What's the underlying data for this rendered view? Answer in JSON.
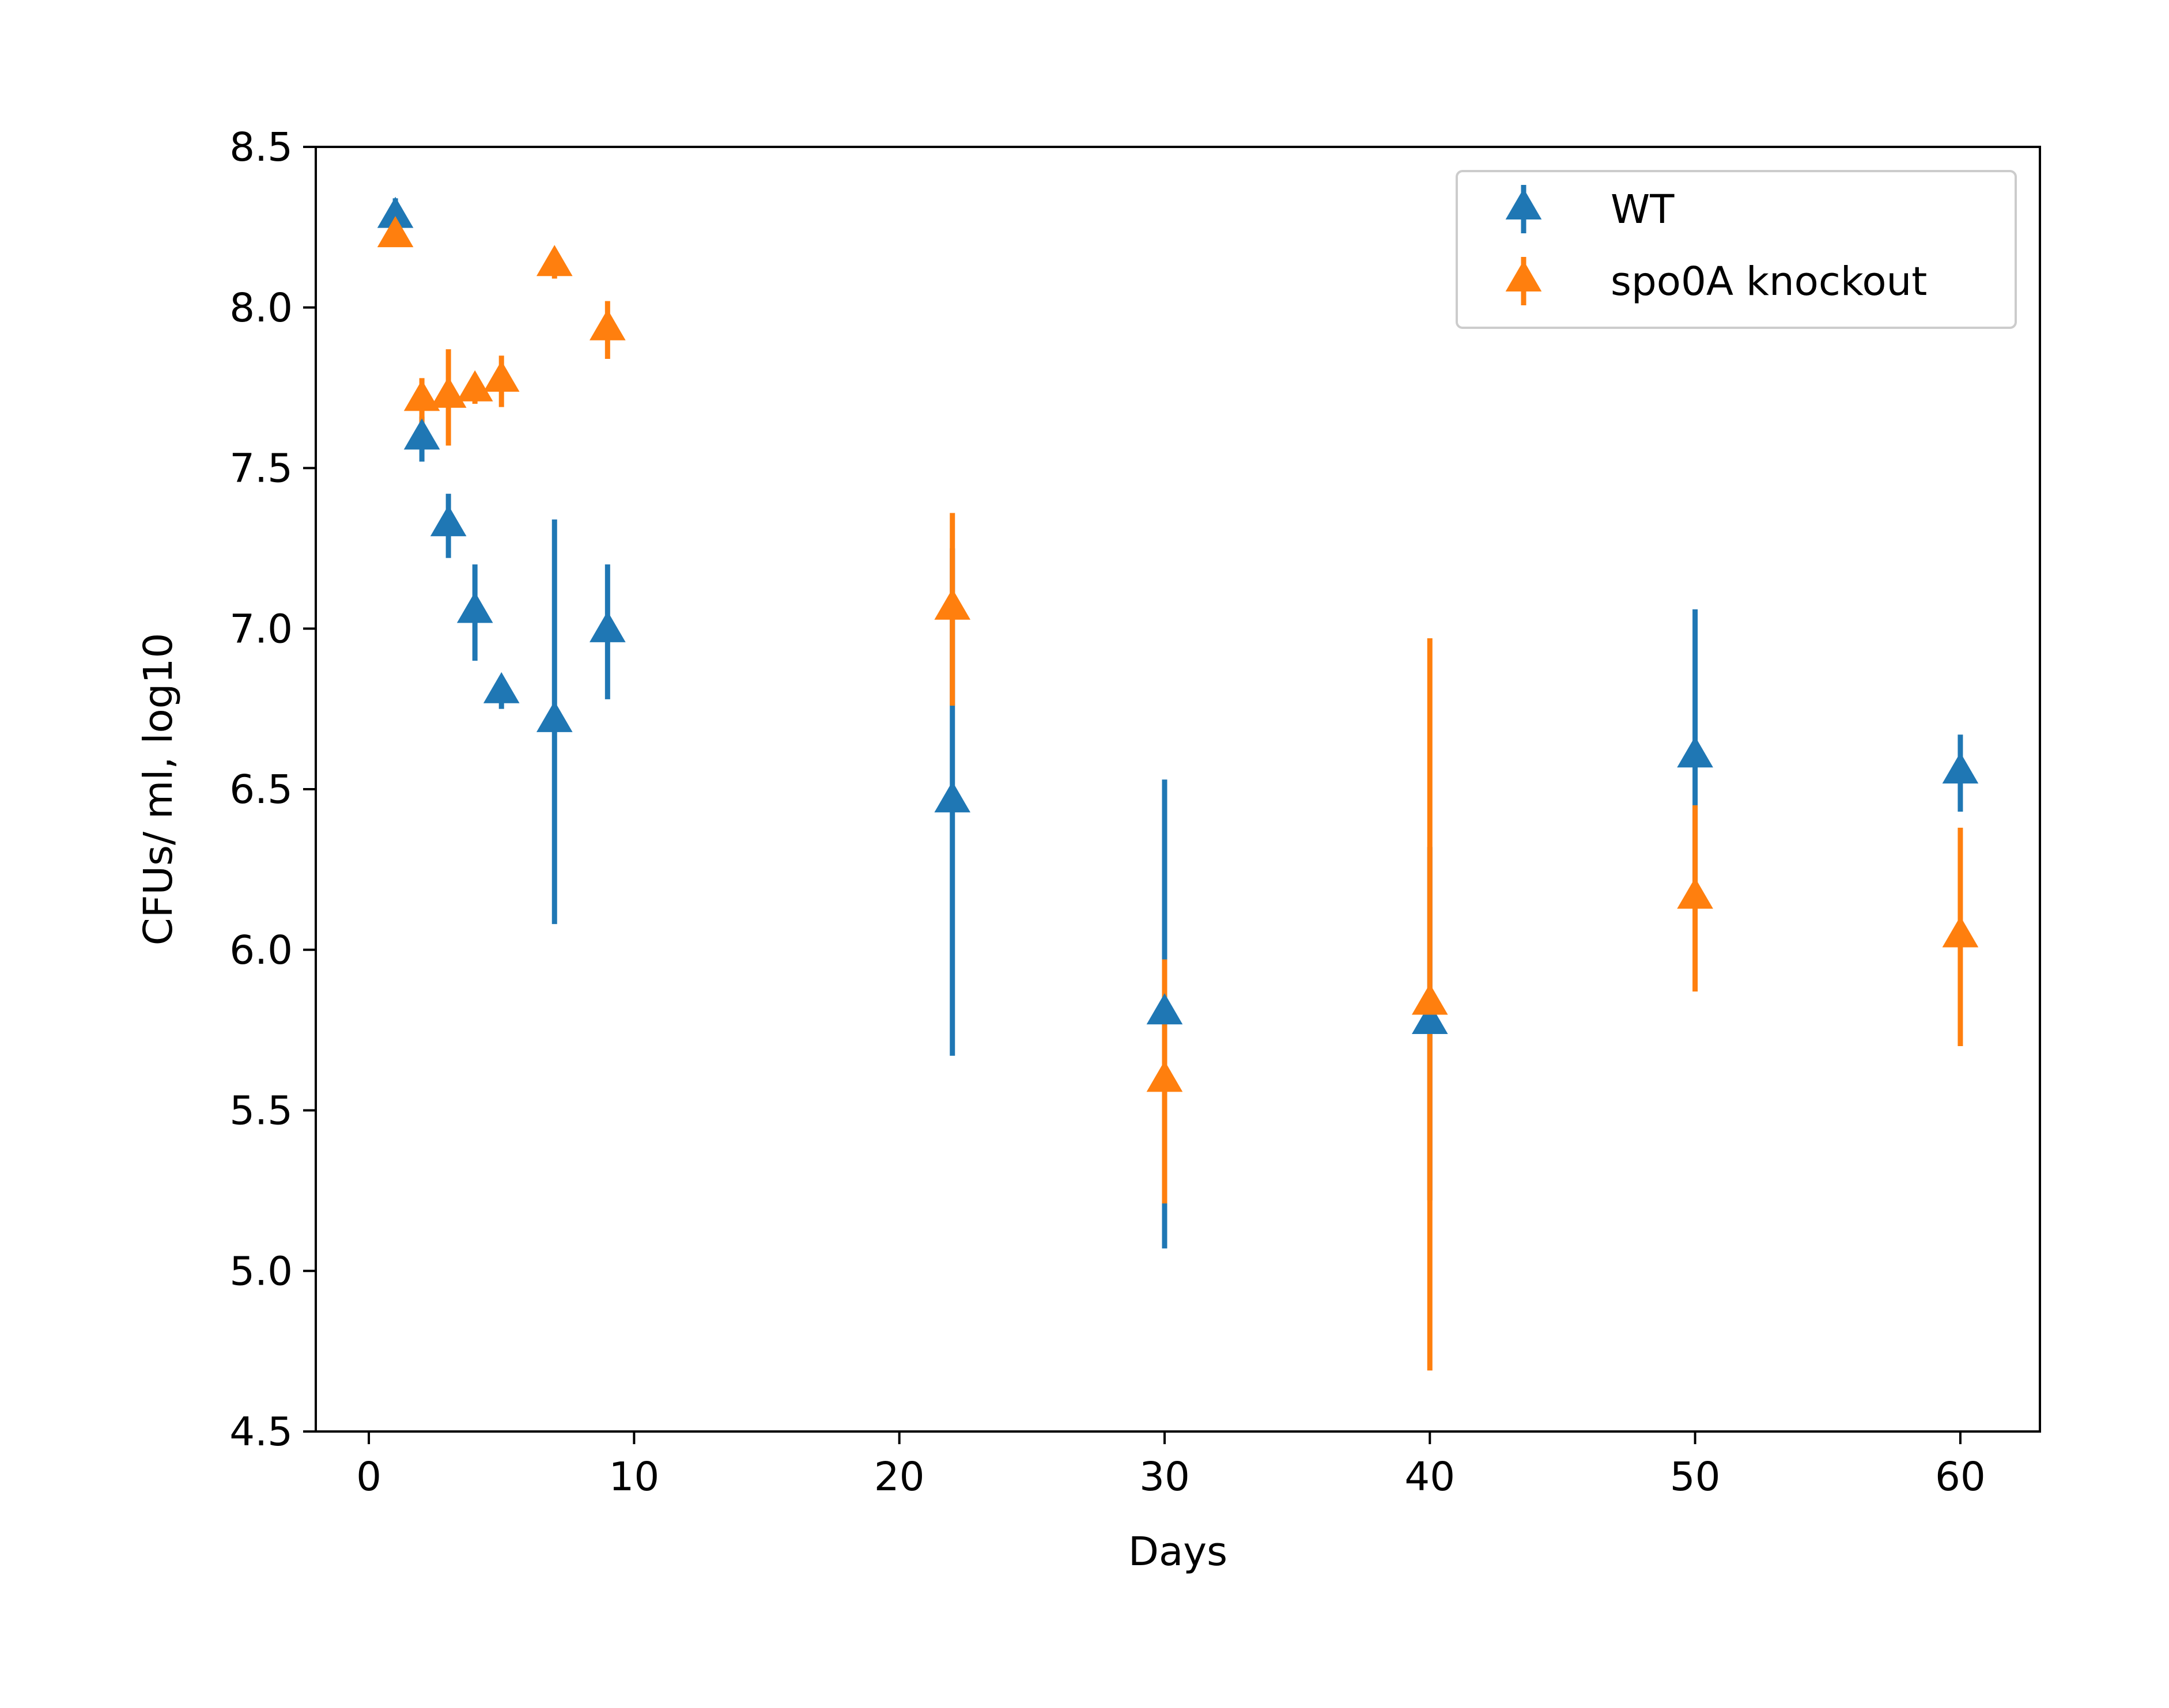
{
  "chart_data": {
    "type": "scatter",
    "title": "",
    "xlabel": "Days",
    "ylabel": "CFUs/ ml, log10",
    "xlim": [
      -2,
      63
    ],
    "ylim": [
      4.5,
      8.5
    ],
    "xticks": [
      0,
      10,
      20,
      30,
      40,
      50,
      60
    ],
    "xtick_labels": [
      "0",
      "10",
      "20",
      "30",
      "40",
      "50",
      "60"
    ],
    "yticks": [
      4.5,
      5.0,
      5.5,
      6.0,
      6.5,
      7.0,
      7.5,
      8.0,
      8.5
    ],
    "ytick_labels": [
      "4.5",
      "5.0",
      "5.5",
      "6.0",
      "6.5",
      "7.0",
      "7.5",
      "8.0",
      "8.5"
    ],
    "grid": false,
    "legend_position": "top-right",
    "marker": "triangle-up",
    "series": [
      {
        "name": "WT",
        "color": "#1f77b4",
        "x": [
          1,
          2,
          3,
          4,
          5,
          7,
          9,
          22,
          30,
          40,
          50,
          60
        ],
        "y": [
          8.28,
          7.59,
          7.32,
          7.05,
          6.8,
          6.71,
          6.99,
          6.46,
          5.8,
          5.77,
          6.6,
          6.55
        ],
        "yerr": [
          0.06,
          0.07,
          0.1,
          0.15,
          0.05,
          0.63,
          0.21,
          0.79,
          0.73,
          0.55,
          0.46,
          0.12
        ]
      },
      {
        "name": "spo0A knockout",
        "color": "#ff7f0e",
        "x": [
          1,
          2,
          3,
          4,
          5,
          7,
          9,
          22,
          30,
          40,
          50,
          60
        ],
        "y": [
          8.22,
          7.71,
          7.72,
          7.74,
          7.77,
          8.13,
          7.93,
          7.06,
          5.59,
          5.83,
          6.16,
          6.04
        ],
        "yerr": [
          0.03,
          0.07,
          0.15,
          0.04,
          0.08,
          0.04,
          0.09,
          0.3,
          0.38,
          1.14,
          0.29,
          0.34
        ]
      }
    ]
  }
}
